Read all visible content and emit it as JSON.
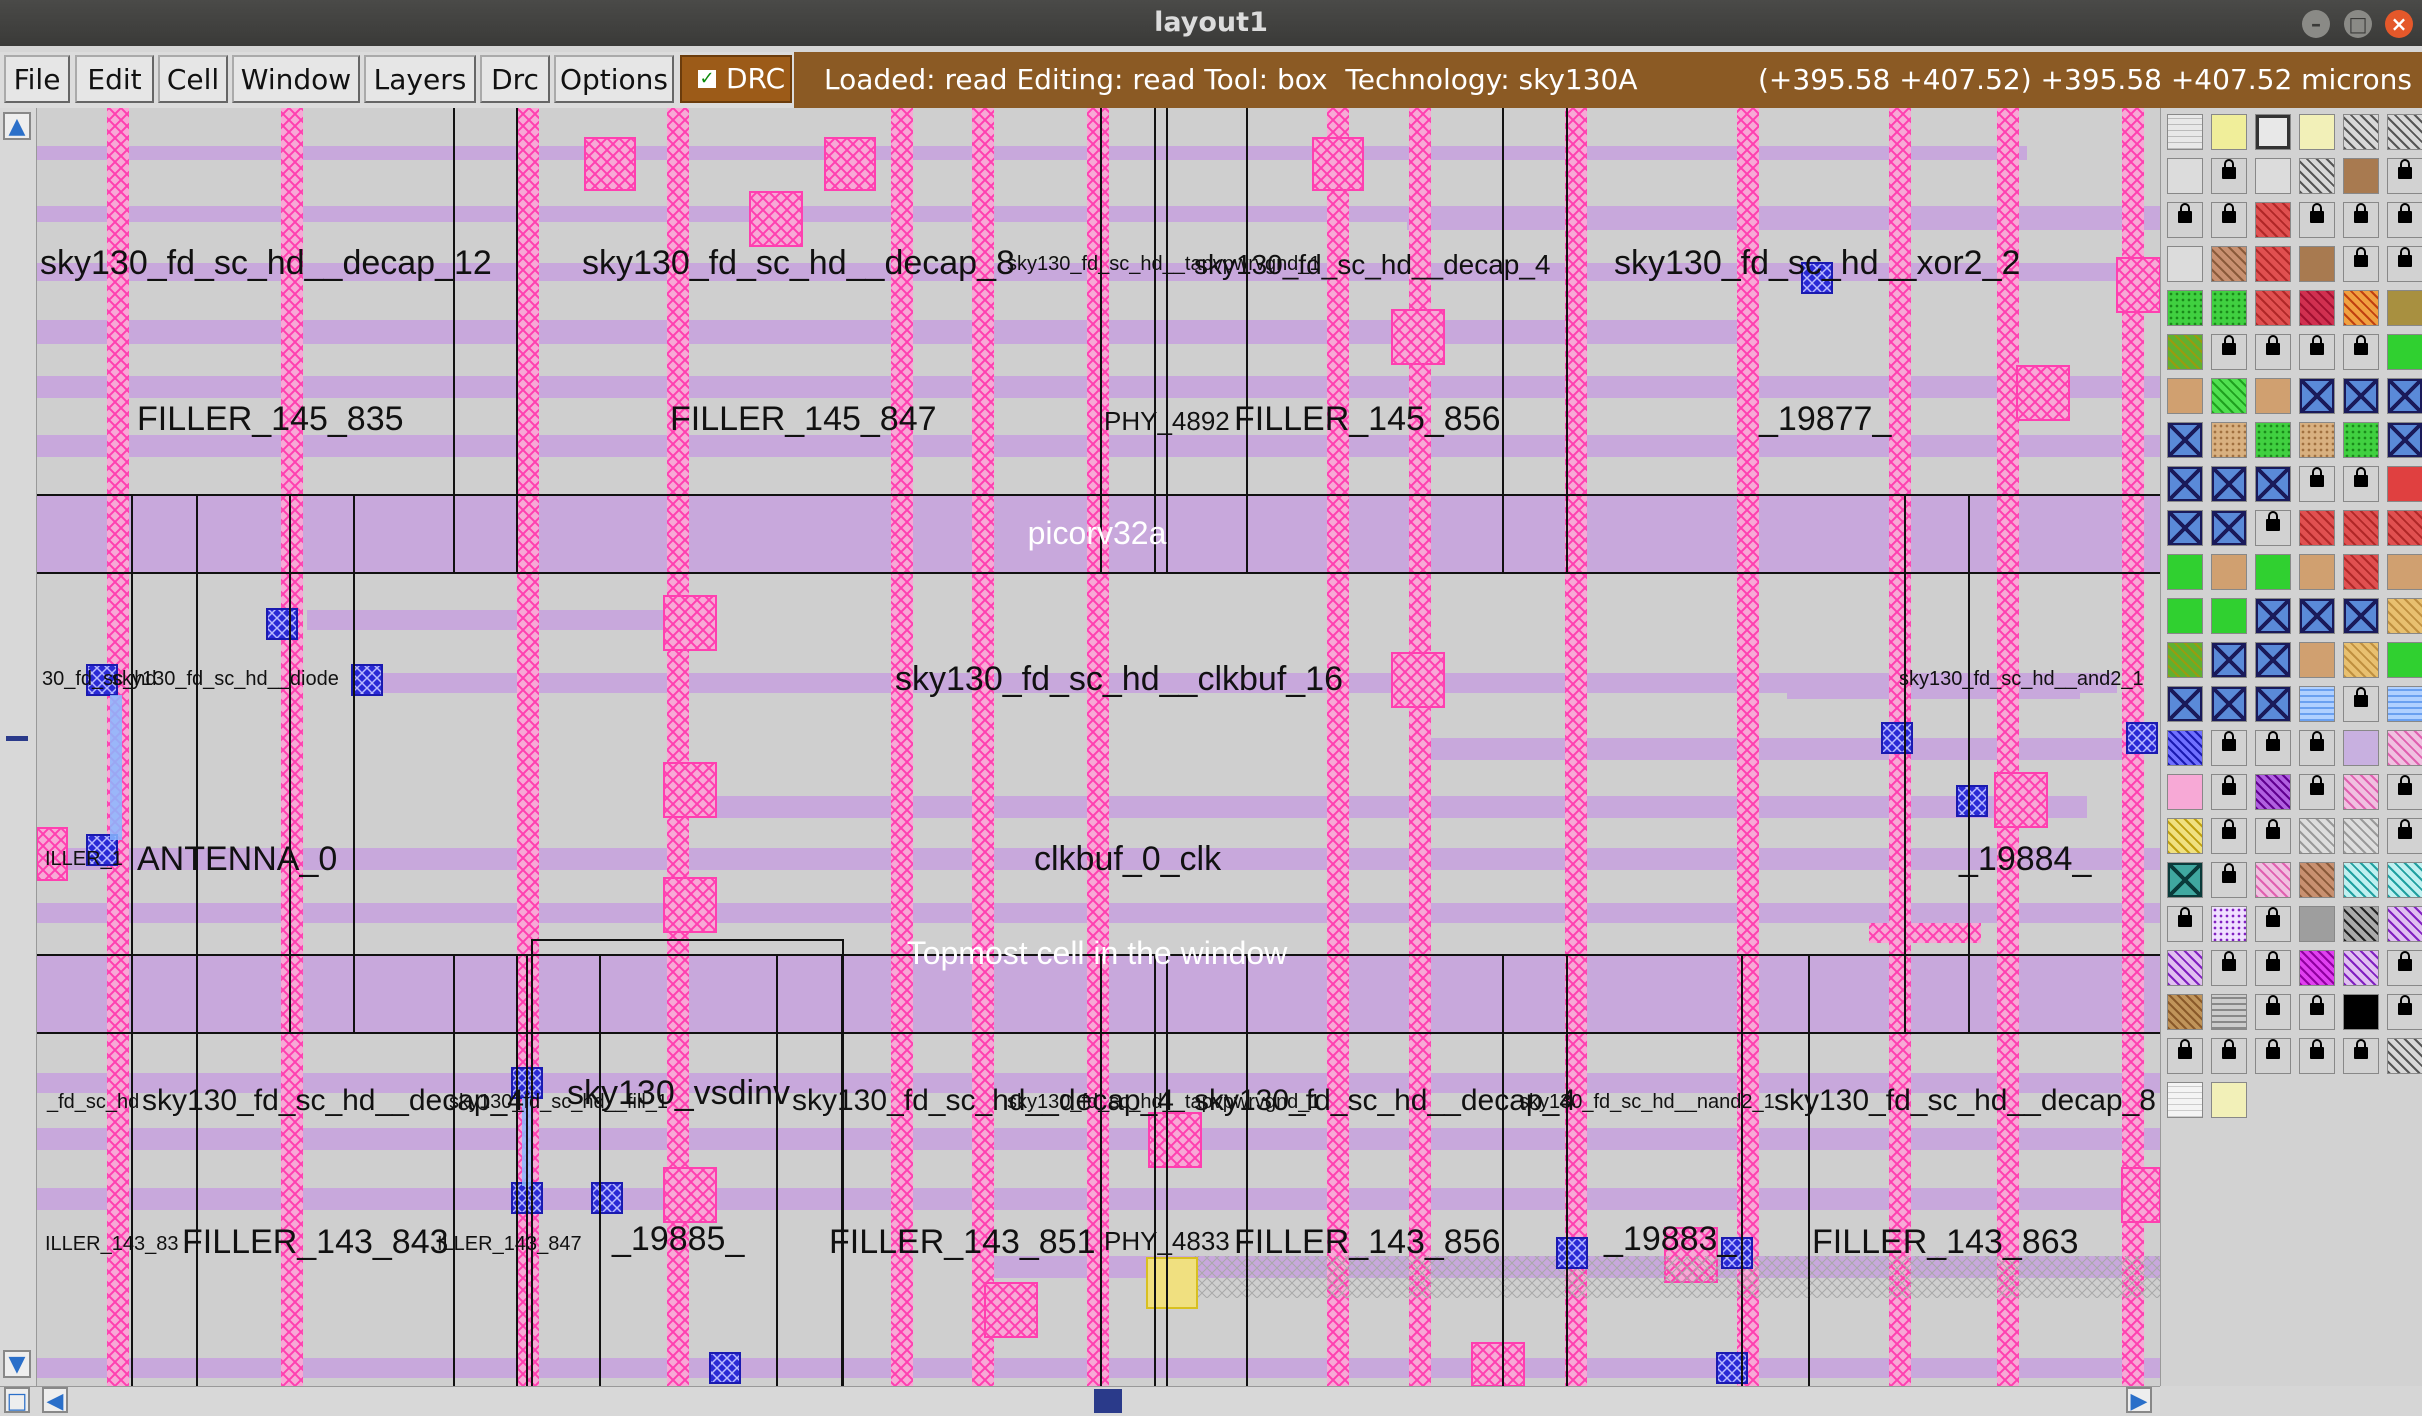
{
  "window": {
    "title": "layout1"
  },
  "menu": {
    "file": "File",
    "edit": "Edit",
    "cell": "Cell",
    "window": "Window",
    "layers": "Layers",
    "drc": "Drc",
    "options": "Options"
  },
  "drc_toggle": {
    "label": "DRC",
    "checked": true
  },
  "status": {
    "left": "Loaded: read Editing: read Tool: box  Technology: sky130A",
    "coords": "(+395.58 +407.52) +395.58 +407.52 microns"
  },
  "colors": {
    "metal1": "#c8a8dc",
    "local_interconnect": "#ff6fc8",
    "via": "#2a2ad6",
    "menu_status_bg": "#8b5a24"
  },
  "layout": {
    "top_banner": "picorv32a",
    "bottom_banner": "Topmost cell in the window",
    "cell_labels": [
      "sky130_fd_sc_hd__decap_12",
      "sky130_fd_sc_hd__decap_8",
      "sky130_fd_sc_hd__tapvpwrvgnd_1",
      "sky130_fd_sc_hd__decap_4",
      "sky130_fd_sc_hd__xor2_2",
      "FILLER_145_835",
      "FILLER_145_847",
      "PHY_4892",
      "FILLER_145_856",
      "_19877_",
      "30_fd_sc_hd",
      "sky130_fd_sc_hd__diode",
      "sky130_fd_sc_hd__clkbuf_16",
      "sky130_fd_sc_hd__and2_1",
      "ILLER_1",
      "ANTENNA_0",
      "clkbuf_0_clk",
      "_19884_",
      "_fd_sc_hd",
      "sky130_fd_sc_hd__decap_4",
      "sky130_fd_sc_hd__fill_1",
      "sky130_vsdinv",
      "sky130_fd_sc_hd__decap_4",
      "sky130_fd_sc_hd__tapvpwrvgnd_1",
      "sky130_fd_sc_hd__decap_4",
      "sky130_fd_sc_hd__nand2_1",
      "sky130_fd_sc_hd__decap_8",
      "ILLER_143_83",
      "FILLER_143_843",
      "ILLER_143_847",
      "_19885_",
      "FILLER_143_851",
      "PHY_4833",
      "FILLER_143_856",
      "_19883_",
      "FILLER_143_863"
    ]
  },
  "palette": {
    "rows": [
      [
        "grid",
        "solid-yellow",
        "outline",
        "yellow-light",
        "hatch-dark",
        "hatch-dark"
      ],
      [
        "gray-light",
        "lock",
        "gray-light",
        "hatch-dark",
        "brown-solid",
        "lock"
      ],
      [
        "lock",
        "lock",
        "red-hatch",
        "lock",
        "lock",
        "lock"
      ],
      [
        "gray-light",
        "brown-hatch",
        "red-hatch",
        "brown-solid",
        "lock",
        "lock"
      ],
      [
        "green-dots",
        "green-dots",
        "red-hatch",
        "crimson-hatch",
        "orange-hatch",
        "olive-solid"
      ],
      [
        "olive-hatch",
        "lock",
        "lock",
        "lock",
        "lock",
        "green-solid"
      ],
      [
        "tan-solid",
        "green-hatch",
        "tan-solid",
        "x-box",
        "x-box",
        "x-box"
      ],
      [
        "x-box",
        "tan-dots",
        "green-dots",
        "tan-dots",
        "green-dots",
        "x-box"
      ],
      [
        "x-box",
        "x-box",
        "x-box",
        "lock",
        "lock",
        "red-solid"
      ],
      [
        "x-box",
        "x-box",
        "lock",
        "red-hatch",
        "red-hatch",
        "red-hatch"
      ],
      [
        "green-solid",
        "tan-solid",
        "green-solid",
        "tan-solid",
        "red-hatch",
        "tan-solid"
      ],
      [
        "green-solid",
        "green-solid",
        "x-box",
        "x-box",
        "x-box",
        "tan-hatch"
      ],
      [
        "olive-hatch",
        "x-box",
        "x-box",
        "tan-solid",
        "tan-hatch",
        "green-solid"
      ],
      [
        "x-box",
        "x-box",
        "x-box",
        "blue-wave",
        "lock",
        "blue-wave"
      ],
      [
        "blue-check",
        "lock",
        "lock",
        "lock",
        "lavender",
        "pink-hatch"
      ],
      [
        "pink-solid",
        "lock",
        "purple-check",
        "lock",
        "pink-hatch",
        "lock"
      ],
      [
        "yellow-hatch",
        "lock",
        "lock",
        "gray-hatch",
        "gray-hatch",
        "lock"
      ],
      [
        "teal-x",
        "lock",
        "pink-hatch",
        "brown-hatch",
        "cyan-hatch",
        "cyan-hatch"
      ],
      [
        "lock",
        "purple-dots",
        "lock",
        "gray-solid",
        "dark-hatch",
        "purple-hatch"
      ],
      [
        "purple-hatch",
        "lock",
        "lock",
        "magenta-check",
        "purple-hatch",
        "lock"
      ],
      [
        "brown-check",
        "gray-lines",
        "lock",
        "lock",
        "black",
        "lock"
      ],
      [
        "lock",
        "lock",
        "lock",
        "lock",
        "lock",
        "hatch-dark"
      ],
      [
        "white-grid",
        "yellow-light"
      ]
    ]
  }
}
